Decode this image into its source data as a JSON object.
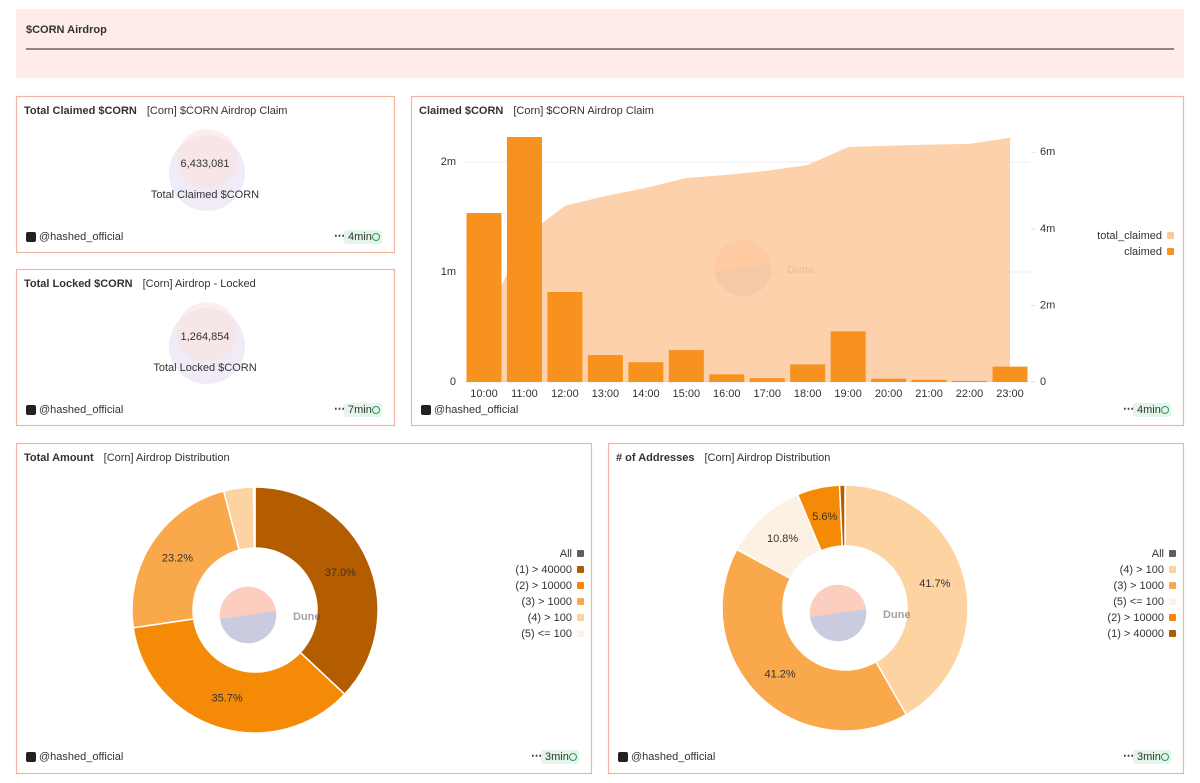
{
  "header": {
    "title": "$CORN Airdrop"
  },
  "watermark": "Dune",
  "counters": [
    {
      "title": "Total Claimed $CORN",
      "query": "[Corn] $CORN Airdrop Claim",
      "value": "6,433,081",
      "label": "Total Claimed $CORN",
      "author": "@hashed_official",
      "age": "4min"
    },
    {
      "title": "Total Locked $CORN",
      "query": "[Corn] Airdrop - Locked",
      "value": "1,264,854",
      "label": "Total Locked $CORN",
      "author": "@hashed_official",
      "age": "7min"
    }
  ],
  "chart_data": [
    {
      "type": "bar",
      "title": "Claimed $CORN",
      "subtitle": "[Corn] $CORN Airdrop Claim",
      "author": "@hashed_official",
      "age": "4min",
      "categories": [
        "10:00",
        "11:00",
        "12:00",
        "13:00",
        "14:00",
        "15:00",
        "16:00",
        "17:00",
        "18:00",
        "19:00",
        "20:00",
        "21:00",
        "22:00",
        "23:00"
      ],
      "series": [
        {
          "name": "total_claimed",
          "color": "#fdc99c",
          "type": "area",
          "axis": "y2",
          "values": [
            1540000,
            3800000,
            4600000,
            4860000,
            5070000,
            5330000,
            5410000,
            5520000,
            5670000,
            6140000,
            6170000,
            6200000,
            6220000,
            6380000
          ]
        },
        {
          "name": "claimed",
          "color": "#f7921e",
          "type": "bar",
          "values": [
            1536000,
            2227000,
            818000,
            245000,
            180000,
            290000,
            70000,
            35000,
            160000,
            460000,
            30000,
            20000,
            10000,
            140000
          ]
        }
      ],
      "ylim": [
        0,
        2227000
      ],
      "yticks": [
        0,
        {
          "value": 1000000,
          "label": "1m"
        },
        {
          "value": 2000000,
          "label": "2m"
        }
      ],
      "y2lim": [
        0,
        6400000
      ],
      "y2ticks": [
        0,
        {
          "value": 2000000,
          "label": "2m"
        },
        {
          "value": 4000000,
          "label": "4m"
        },
        {
          "value": 6000000,
          "label": "6m"
        }
      ],
      "grid": true,
      "legend": "right"
    },
    {
      "type": "donut",
      "title": "Total Amount",
      "subtitle": "[Corn] Airdrop Distribution",
      "author": "@hashed_official",
      "age": "3min",
      "categories": [
        "(1) > 40000",
        "(2) > 10000",
        "(3) > 1000",
        "(4) > 100",
        "(5) <= 100"
      ],
      "values": [
        37.0,
        35.7,
        23.2,
        3.9,
        0.2
      ],
      "value_labels": [
        "37.0%",
        "35.7%",
        "23.2%",
        null,
        null
      ],
      "colors": [
        "#b35c00",
        "#f58a07",
        "#f9a94b",
        "#fcd3a1",
        "#fdf1e4"
      ],
      "legend_all": "All",
      "legend_all_color": "#5f5f5f",
      "legend_order": [
        0,
        1,
        2,
        3,
        4
      ]
    },
    {
      "type": "donut",
      "title": "# of Addresses",
      "subtitle": "[Corn] Airdrop Distribution",
      "author": "@hashed_official",
      "age": "3min",
      "categories": [
        "(4) > 100",
        "(3) > 1000",
        "(5) <= 100",
        "(2) > 10000",
        "(1) > 40000"
      ],
      "values": [
        41.7,
        41.2,
        10.8,
        5.6,
        0.7
      ],
      "value_labels": [
        "41.7%",
        "41.2%",
        "10.8%",
        "5.6%",
        null
      ],
      "colors": [
        "#fcd3a1",
        "#f9a94b",
        "#fdf1e4",
        "#f58a07",
        "#b35c00"
      ],
      "legend_all": "All",
      "legend_all_color": "#5f5f5f",
      "legend_order": [
        0,
        1,
        2,
        3,
        4
      ]
    }
  ]
}
